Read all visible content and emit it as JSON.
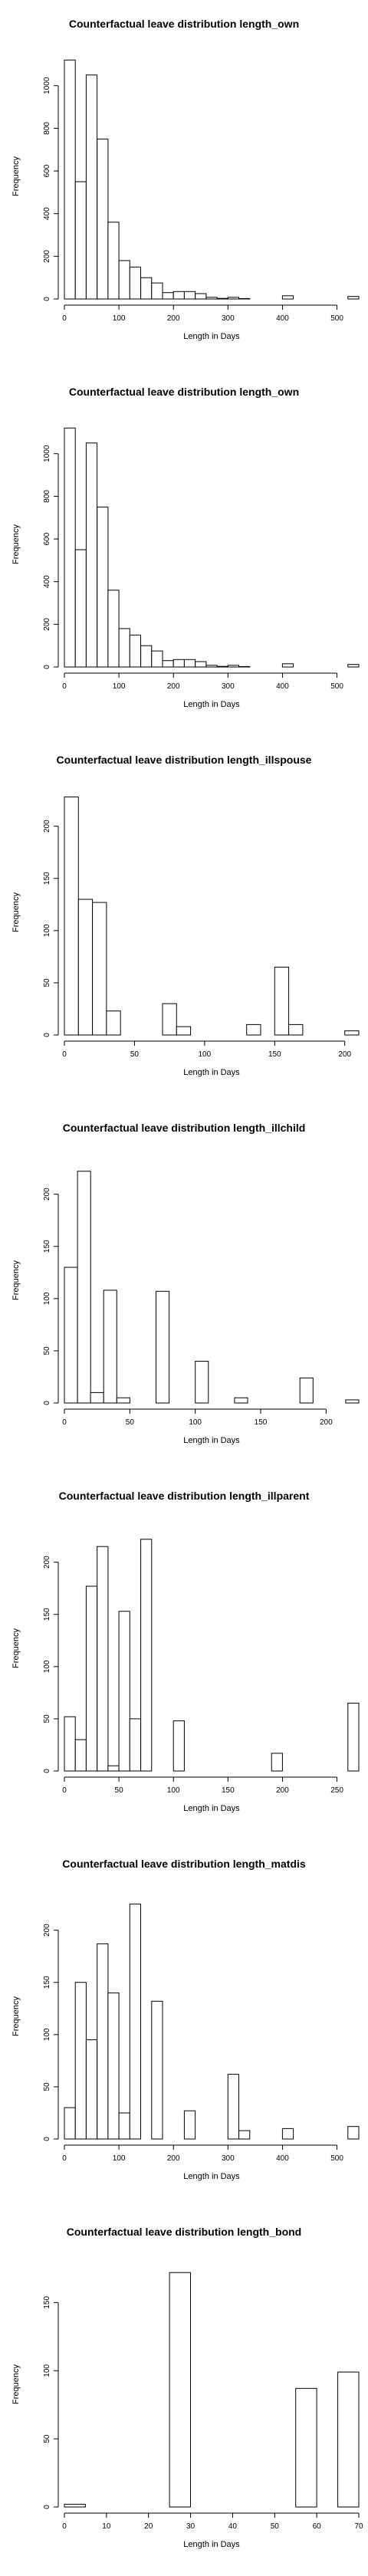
{
  "chart_data": [
    {
      "type": "bar",
      "title": "Counterfactual leave distribution length_own",
      "xlabel": "Length in Days",
      "ylabel": "Frequency",
      "xlim": [
        0,
        540
      ],
      "ylim": [
        0,
        1150
      ],
      "xticks": [
        0,
        100,
        200,
        300,
        400,
        500
      ],
      "yticks": [
        0,
        200,
        400,
        600,
        800,
        1000
      ],
      "bins": [
        {
          "x0": 0,
          "x1": 20,
          "value": 1120
        },
        {
          "x0": 20,
          "x1": 40,
          "value": 550
        },
        {
          "x0": 40,
          "x1": 60,
          "value": 1050
        },
        {
          "x0": 60,
          "x1": 80,
          "value": 750
        },
        {
          "x0": 80,
          "x1": 100,
          "value": 360
        },
        {
          "x0": 100,
          "x1": 120,
          "value": 180
        },
        {
          "x0": 120,
          "x1": 140,
          "value": 150
        },
        {
          "x0": 140,
          "x1": 160,
          "value": 100
        },
        {
          "x0": 160,
          "x1": 180,
          "value": 75
        },
        {
          "x0": 180,
          "x1": 200,
          "value": 30
        },
        {
          "x0": 200,
          "x1": 220,
          "value": 35
        },
        {
          "x0": 220,
          "x1": 240,
          "value": 35
        },
        {
          "x0": 240,
          "x1": 260,
          "value": 25
        },
        {
          "x0": 260,
          "x1": 280,
          "value": 8
        },
        {
          "x0": 280,
          "x1": 300,
          "value": 3
        },
        {
          "x0": 300,
          "x1": 320,
          "value": 8
        },
        {
          "x0": 320,
          "x1": 340,
          "value": 2
        },
        {
          "x0": 400,
          "x1": 420,
          "value": 15
        },
        {
          "x0": 520,
          "x1": 540,
          "value": 12
        }
      ]
    },
    {
      "type": "bar",
      "title": "Counterfactual leave distribution length_own",
      "xlabel": "Length in Days",
      "ylabel": "Frequency",
      "xlim": [
        0,
        540
      ],
      "ylim": [
        0,
        1150
      ],
      "xticks": [
        0,
        100,
        200,
        300,
        400,
        500
      ],
      "yticks": [
        0,
        200,
        400,
        600,
        800,
        1000
      ],
      "bins": [
        {
          "x0": 0,
          "x1": 20,
          "value": 1120
        },
        {
          "x0": 20,
          "x1": 40,
          "value": 550
        },
        {
          "x0": 40,
          "x1": 60,
          "value": 1050
        },
        {
          "x0": 60,
          "x1": 80,
          "value": 750
        },
        {
          "x0": 80,
          "x1": 100,
          "value": 360
        },
        {
          "x0": 100,
          "x1": 120,
          "value": 180
        },
        {
          "x0": 120,
          "x1": 140,
          "value": 150
        },
        {
          "x0": 140,
          "x1": 160,
          "value": 100
        },
        {
          "x0": 160,
          "x1": 180,
          "value": 75
        },
        {
          "x0": 180,
          "x1": 200,
          "value": 30
        },
        {
          "x0": 200,
          "x1": 220,
          "value": 35
        },
        {
          "x0": 220,
          "x1": 240,
          "value": 35
        },
        {
          "x0": 240,
          "x1": 260,
          "value": 25
        },
        {
          "x0": 260,
          "x1": 280,
          "value": 8
        },
        {
          "x0": 280,
          "x1": 300,
          "value": 3
        },
        {
          "x0": 300,
          "x1": 320,
          "value": 8
        },
        {
          "x0": 320,
          "x1": 340,
          "value": 2
        },
        {
          "x0": 400,
          "x1": 420,
          "value": 15
        },
        {
          "x0": 520,
          "x1": 540,
          "value": 12
        }
      ]
    },
    {
      "type": "bar",
      "title": "Counterfactual leave distribution length_illspouse",
      "xlabel": "Length in Days",
      "ylabel": "Frequency",
      "xlim": [
        0,
        210
      ],
      "ylim": [
        0,
        235
      ],
      "xticks": [
        0,
        50,
        100,
        150,
        200
      ],
      "yticks": [
        0,
        50,
        100,
        150,
        200
      ],
      "bins": [
        {
          "x0": 0,
          "x1": 10,
          "value": 228
        },
        {
          "x0": 10,
          "x1": 20,
          "value": 130
        },
        {
          "x0": 20,
          "x1": 30,
          "value": 127
        },
        {
          "x0": 30,
          "x1": 40,
          "value": 23
        },
        {
          "x0": 70,
          "x1": 80,
          "value": 30
        },
        {
          "x0": 80,
          "x1": 90,
          "value": 8
        },
        {
          "x0": 130,
          "x1": 140,
          "value": 10
        },
        {
          "x0": 150,
          "x1": 160,
          "value": 65
        },
        {
          "x0": 160,
          "x1": 170,
          "value": 10
        },
        {
          "x0": 200,
          "x1": 210,
          "value": 4
        }
      ]
    },
    {
      "type": "bar",
      "title": "Counterfactual leave distribution length_illchild",
      "xlabel": "Length in Days",
      "ylabel": "Frequency",
      "xlim": [
        0,
        225
      ],
      "ylim": [
        0,
        235
      ],
      "xticks": [
        0,
        50,
        100,
        150,
        200
      ],
      "yticks": [
        0,
        50,
        100,
        150,
        200
      ],
      "bins": [
        {
          "x0": 0,
          "x1": 10,
          "value": 130
        },
        {
          "x0": 10,
          "x1": 20,
          "value": 222
        },
        {
          "x0": 20,
          "x1": 30,
          "value": 10
        },
        {
          "x0": 30,
          "x1": 40,
          "value": 108
        },
        {
          "x0": 40,
          "x1": 50,
          "value": 5
        },
        {
          "x0": 70,
          "x1": 80,
          "value": 107
        },
        {
          "x0": 100,
          "x1": 110,
          "value": 40
        },
        {
          "x0": 130,
          "x1": 140,
          "value": 5
        },
        {
          "x0": 180,
          "x1": 190,
          "value": 24
        },
        {
          "x0": 215,
          "x1": 225,
          "value": 3
        }
      ]
    },
    {
      "type": "bar",
      "title": "Counterfactual leave distribution length_illparent",
      "xlabel": "Length in Days",
      "ylabel": "Frequency",
      "xlim": [
        0,
        270
      ],
      "ylim": [
        0,
        235
      ],
      "xticks": [
        0,
        50,
        100,
        150,
        200,
        250
      ],
      "yticks": [
        0,
        50,
        100,
        150,
        200
      ],
      "bins": [
        {
          "x0": 0,
          "x1": 10,
          "value": 52
        },
        {
          "x0": 10,
          "x1": 20,
          "value": 30
        },
        {
          "x0": 20,
          "x1": 30,
          "value": 177
        },
        {
          "x0": 30,
          "x1": 40,
          "value": 215
        },
        {
          "x0": 40,
          "x1": 50,
          "value": 5
        },
        {
          "x0": 50,
          "x1": 60,
          "value": 153
        },
        {
          "x0": 60,
          "x1": 70,
          "value": 50
        },
        {
          "x0": 70,
          "x1": 80,
          "value": 222
        },
        {
          "x0": 100,
          "x1": 110,
          "value": 48
        },
        {
          "x0": 190,
          "x1": 200,
          "value": 17
        },
        {
          "x0": 260,
          "x1": 270,
          "value": 65
        }
      ]
    },
    {
      "type": "bar",
      "title": "Counterfactual leave distribution length_matdis",
      "xlabel": "Length in Days",
      "ylabel": "Frequency",
      "xlim": [
        0,
        540
      ],
      "ylim": [
        0,
        235
      ],
      "xticks": [
        0,
        100,
        200,
        300,
        400,
        500
      ],
      "yticks": [
        0,
        50,
        100,
        150,
        200
      ],
      "bins": [
        {
          "x0": 0,
          "x1": 20,
          "value": 30
        },
        {
          "x0": 20,
          "x1": 40,
          "value": 150
        },
        {
          "x0": 40,
          "x1": 60,
          "value": 95
        },
        {
          "x0": 60,
          "x1": 80,
          "value": 187
        },
        {
          "x0": 80,
          "x1": 100,
          "value": 140
        },
        {
          "x0": 100,
          "x1": 120,
          "value": 25
        },
        {
          "x0": 120,
          "x1": 140,
          "value": 225
        },
        {
          "x0": 140,
          "x1": 160,
          "value": 0
        },
        {
          "x0": 160,
          "x1": 180,
          "value": 132
        },
        {
          "x0": 220,
          "x1": 240,
          "value": 27
        },
        {
          "x0": 300,
          "x1": 320,
          "value": 62
        },
        {
          "x0": 320,
          "x1": 340,
          "value": 8
        },
        {
          "x0": 400,
          "x1": 420,
          "value": 10
        },
        {
          "x0": 520,
          "x1": 540,
          "value": 12
        }
      ]
    },
    {
      "type": "bar",
      "title": "Counterfactual leave distribution length_bond",
      "xlabel": "Length in Days",
      "ylabel": "Frequency",
      "xlim": [
        0,
        70
      ],
      "ylim": [
        0,
        180
      ],
      "xticks": [
        0,
        10,
        20,
        30,
        40,
        50,
        60,
        70
      ],
      "yticks": [
        0,
        50,
        100,
        150
      ],
      "bins": [
        {
          "x0": 0,
          "x1": 5,
          "value": 2
        },
        {
          "x0": 25,
          "x1": 30,
          "value": 172
        },
        {
          "x0": 55,
          "x1": 60,
          "value": 87
        },
        {
          "x0": 65,
          "x1": 70,
          "value": 99
        }
      ]
    }
  ]
}
